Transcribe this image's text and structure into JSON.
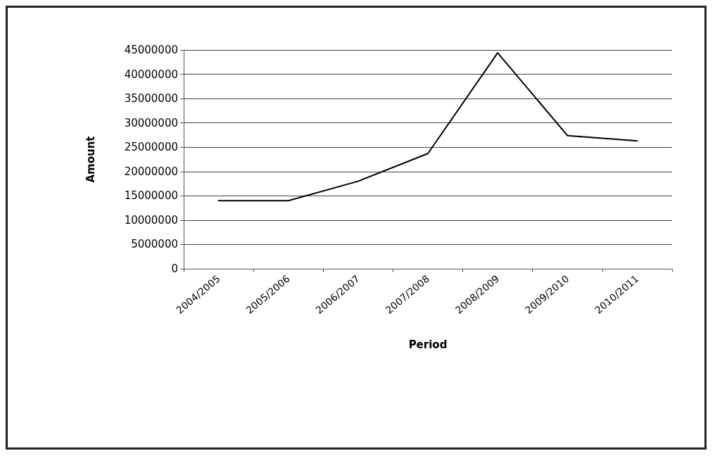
{
  "chart_data": {
    "type": "line",
    "xlabel": "Period",
    "ylabel": "Amount",
    "categories": [
      "2004/2005",
      "2005/2006",
      "2006/2007",
      "2007/2008",
      "2008/2009",
      "2009/2010",
      "2010/2011"
    ],
    "series": [
      {
        "color": "#000000",
        "values": [
          14000000,
          14000000,
          18000000,
          23700000,
          44400000,
          27400000,
          26300000
        ]
      }
    ],
    "ylim": [
      0,
      45000000
    ],
    "yticks": [
      0,
      5000000,
      10000000,
      15000000,
      20000000,
      25000000,
      30000000,
      35000000,
      40000000,
      45000000
    ],
    "grid": "y",
    "marker": "none",
    "line_style": "solid"
  }
}
